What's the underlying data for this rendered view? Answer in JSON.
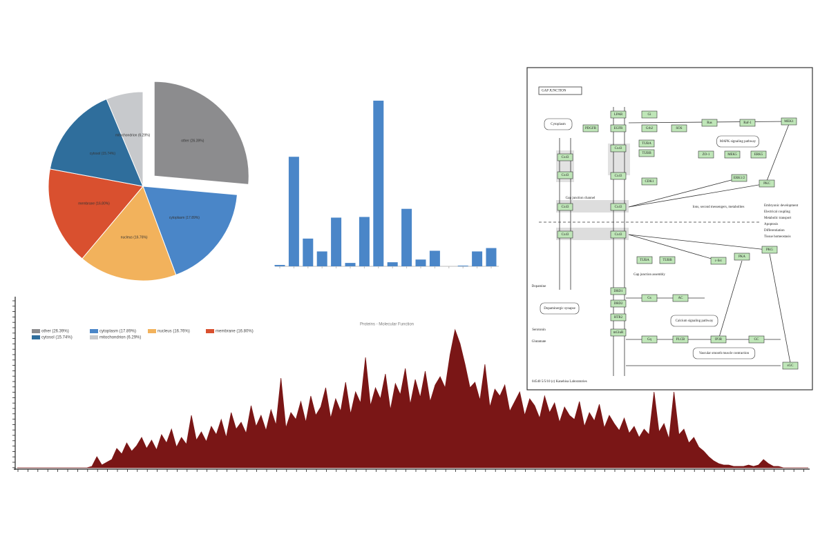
{
  "chart_data": [
    {
      "type": "pie",
      "categories": [
        "other (26.39%)",
        "cytoplasm (17.89%)",
        "nucleus (16.76%)",
        "membrane (16.80%)",
        "cytosol (15.74%)",
        "mitochondrion (6.29%)"
      ],
      "values": [
        26.39,
        17.89,
        16.76,
        16.8,
        15.74,
        6.29
      ],
      "colors": [
        "#8c8c8e",
        "#4a86c8",
        "#f2b25c",
        "#d9502f",
        "#2f6e9c",
        "#c7c9cc"
      ],
      "exploded": 0
    },
    {
      "type": "bar",
      "title": "Proteins - Molecular Function",
      "values": [
        2,
        162,
        41,
        22,
        72,
        5,
        73,
        245,
        6,
        85,
        10,
        23,
        0,
        1,
        22,
        27
      ],
      "color": "#4a86c8",
      "ylim": [
        0,
        250
      ]
    },
    {
      "type": "area",
      "color": "#7a1616",
      "ylim": [
        0,
        100
      ],
      "values": [
        0,
        0,
        0,
        0,
        0,
        0,
        0,
        0,
        0,
        0,
        0,
        0,
        0,
        0,
        0,
        1,
        8,
        2,
        4,
        6,
        14,
        10,
        18,
        12,
        16,
        22,
        14,
        20,
        13,
        24,
        18,
        28,
        15,
        22,
        17,
        38,
        20,
        26,
        19,
        30,
        24,
        35,
        22,
        40,
        28,
        33,
        25,
        45,
        30,
        38,
        27,
        42,
        31,
        65,
        29,
        40,
        35,
        48,
        33,
        52,
        38,
        44,
        58,
        36,
        50,
        41,
        62,
        39,
        55,
        47,
        80,
        45,
        58,
        50,
        68,
        42,
        61,
        53,
        72,
        46,
        64,
        51,
        70,
        48,
        60,
        66,
        58,
        82,
        100,
        90,
        75,
        58,
        62,
        49,
        75,
        44,
        57,
        52,
        60,
        41,
        48,
        55,
        38,
        50,
        45,
        36,
        52,
        40,
        47,
        33,
        44,
        38,
        35,
        48,
        30,
        40,
        34,
        46,
        29,
        38,
        32,
        27,
        36,
        25,
        30,
        22,
        28,
        24,
        55,
        26,
        32,
        21,
        55,
        24,
        28,
        18,
        22,
        15,
        12,
        8,
        5,
        3,
        2,
        2,
        1,
        1,
        1,
        2,
        1,
        2,
        6,
        3,
        1,
        1,
        0,
        0,
        0,
        0,
        0,
        0
      ]
    }
  ],
  "diagram": {
    "title": "GAP JUNCTION",
    "genes": [
      "Cx43",
      "Cx43",
      "Cx43",
      "Cx43",
      "Cx43",
      "Cx43",
      "Cx43",
      "Cx43",
      "LPAR",
      "EGFR",
      "PDGFR",
      "Gi",
      "Grb2",
      "SOS",
      "Ras",
      "Raf-1",
      "MEK1",
      "TUBA",
      "TUBB",
      "ZO-1",
      "MEK5",
      "ERK5",
      "ERK1/2",
      "PKC",
      "CDK1",
      "c-Src",
      "PKA",
      "PKG",
      "DRD1",
      "DRD2",
      "HTR2",
      "mGluR",
      "Gs",
      "AC",
      "Gq",
      "PLCB",
      "IP3R",
      "GC",
      "sGC",
      "TUBA",
      "TUBB"
    ],
    "labels": [
      "Cytoplasm",
      "Gap junction channel",
      "Ions, second messengers, metabolites",
      "MAPK signaling pathway",
      "Dopamine",
      "Serotonin",
      "Glutamate",
      "Dopaminergic synapse",
      "Calcium signaling pathway",
      "Vascular smooth muscle contraction",
      "Gap junction assembly"
    ],
    "outcomes": [
      "Embryonic development",
      "Electrical coupling",
      "Metabolic transport",
      "Apoptosis",
      "Differentiation",
      "Tissue homeostasis"
    ],
    "footer": "04540 5/5/10 (c) Kanehisa Laboratories"
  }
}
